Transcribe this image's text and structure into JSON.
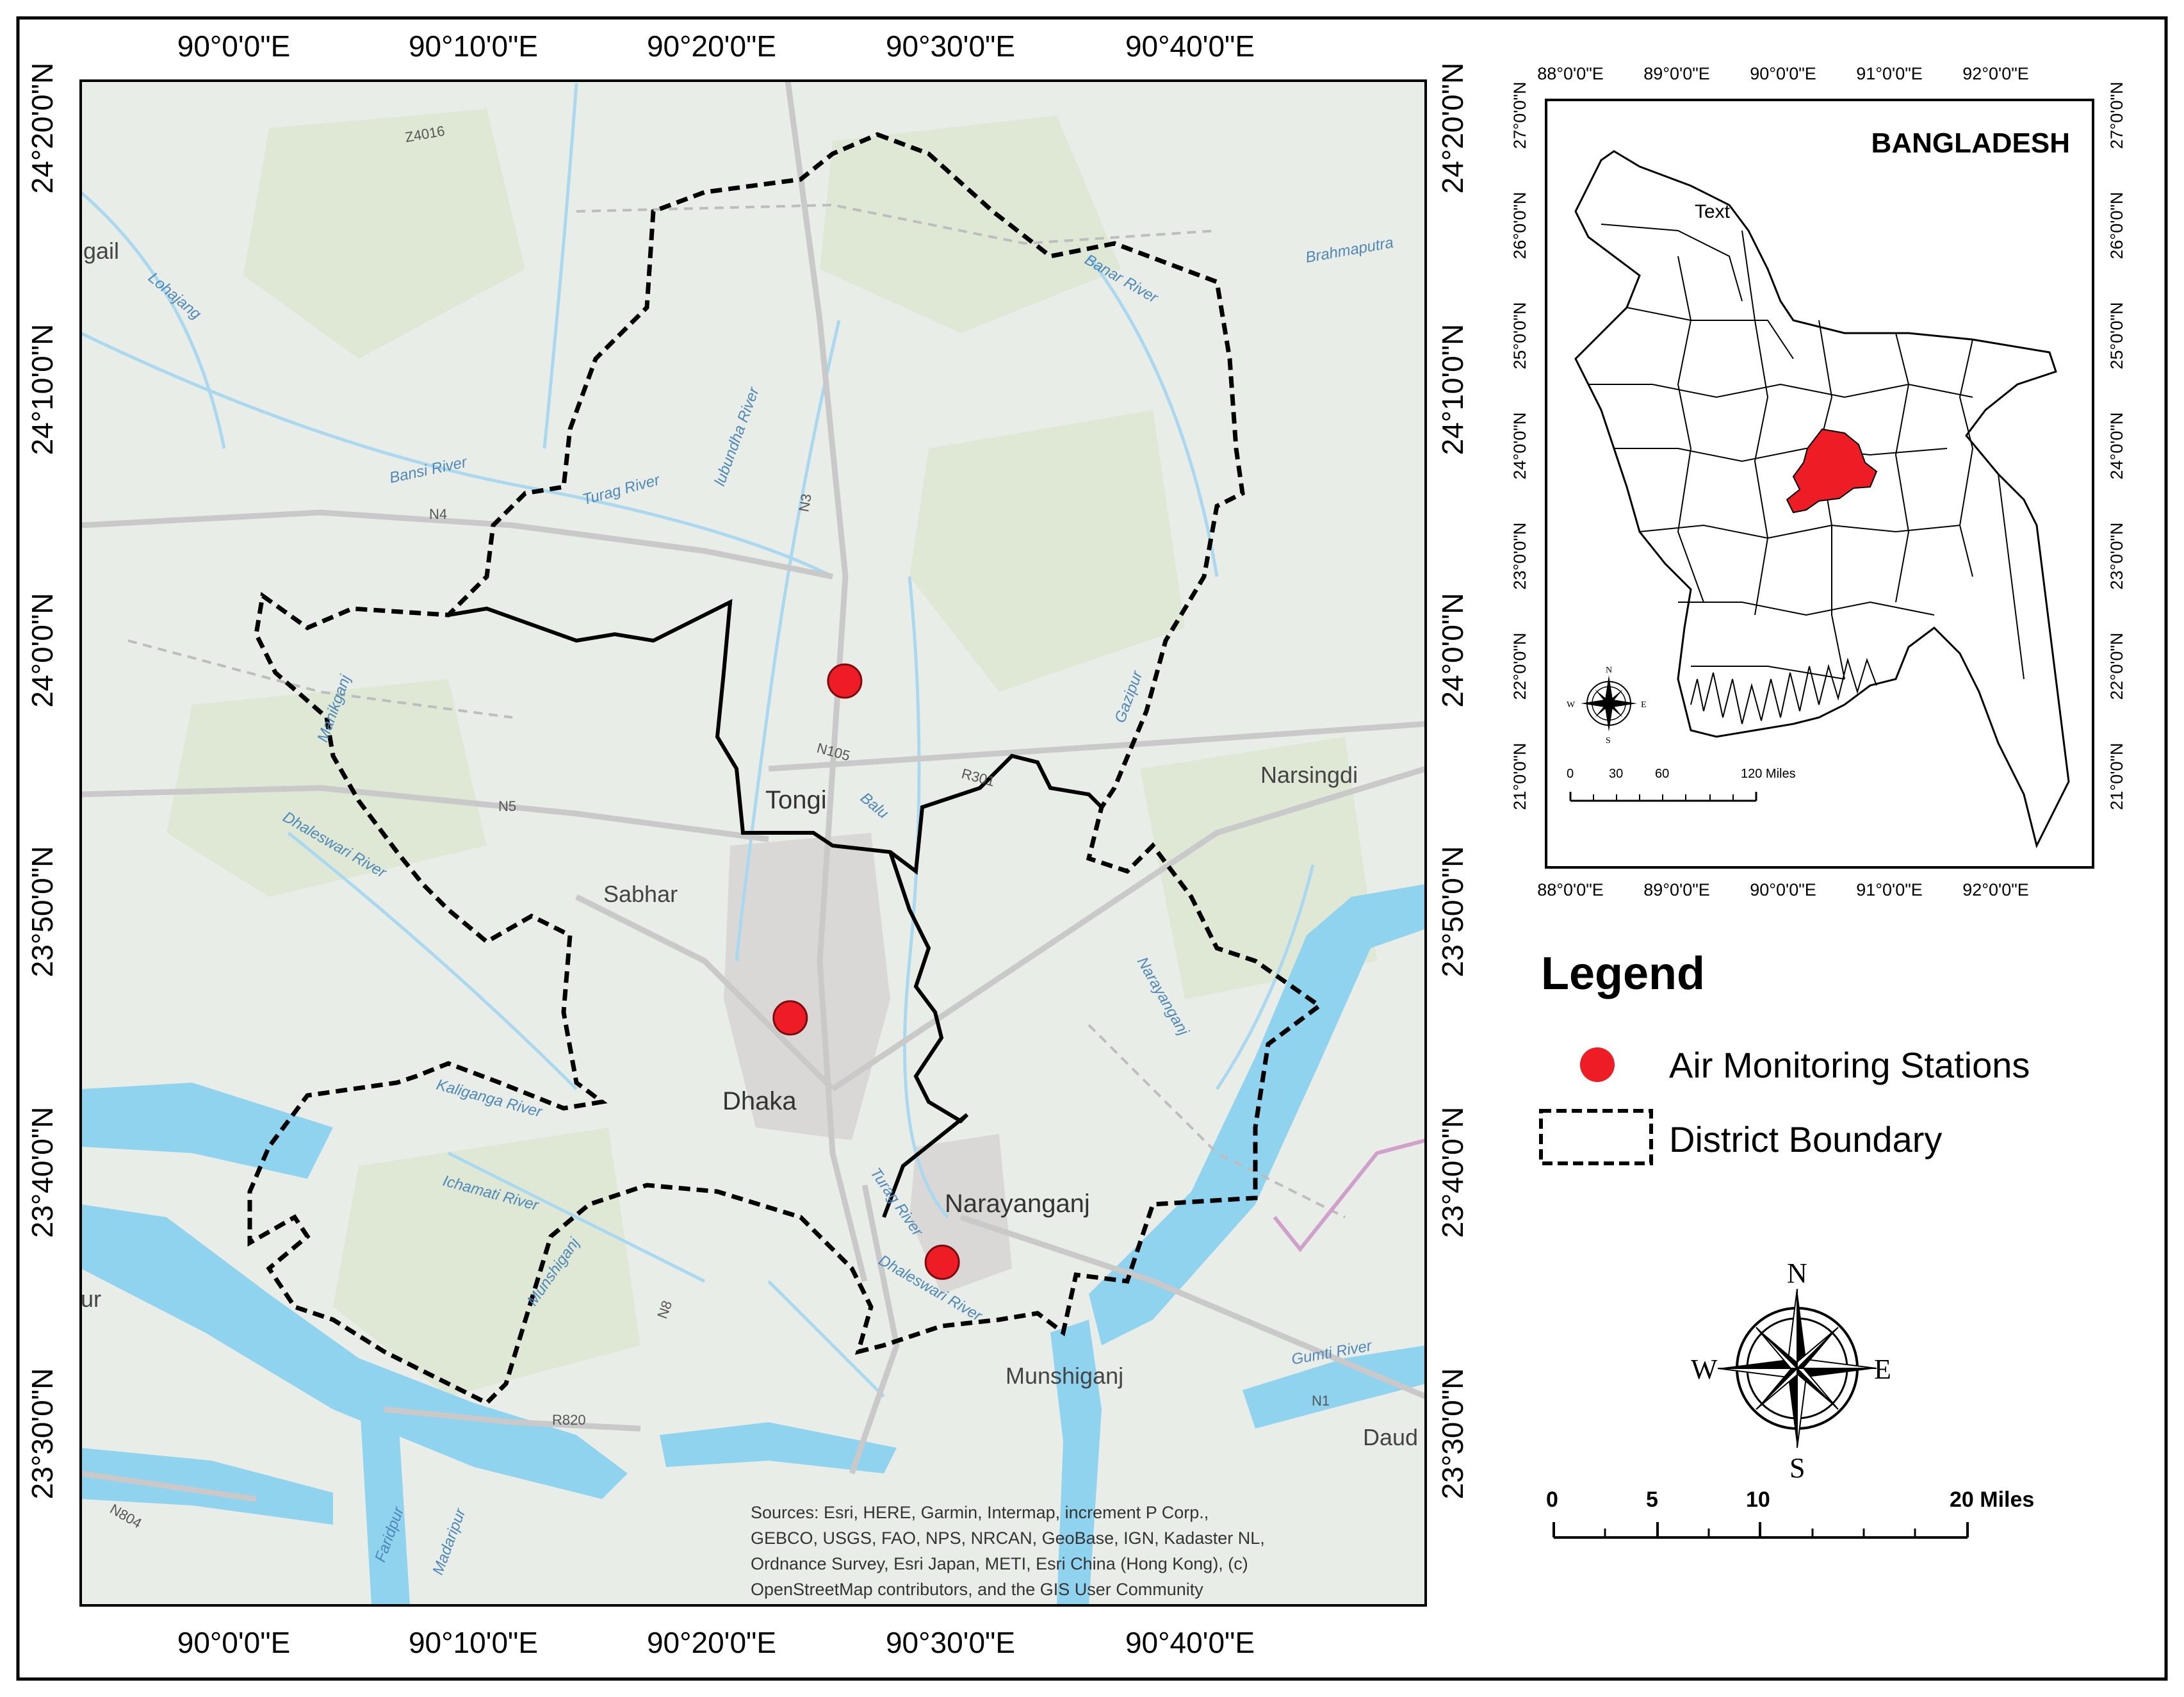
{
  "main_map": {
    "lon_labels": [
      "90°0'0\"E",
      "90°10'0\"E",
      "90°20'0\"E",
      "90°30'0\"E",
      "90°40'0\"E"
    ],
    "lat_labels": [
      "24°20'0\"N",
      "24°10'0\"N",
      "24°0'0\"N",
      "23°50'0\"N",
      "23°40'0\"N",
      "23°30'0\"N"
    ],
    "places": {
      "tongi": "Tongi",
      "dhaka": "Dhaka",
      "narayanganj": "Narayanganj",
      "sabhar": "Sabhar",
      "narsingdi": "Narsingdi",
      "munshiganj": "Munshiganj",
      "munshiganj_small": "Munshiganj",
      "gazipur": "Gazipur",
      "manikganj": "Manikganj",
      "faridpur": "Faridpur",
      "madaripur": "Madaripur",
      "naray_small": "Narayanganj",
      "daud": "Daud",
      "gail": "gail",
      "ur": "ur"
    },
    "roads": [
      "N3",
      "N4",
      "N5",
      "N8",
      "N1",
      "N105",
      "R301",
      "R820",
      "N804",
      "Z4016"
    ],
    "rivers": {
      "bansi": "Bansi River",
      "turag": "Turag River",
      "lubundha": "lubundha River",
      "dhaleswari": "Dhaleswari River",
      "ichamati": "Ichamati River",
      "balu": "Balu",
      "tilabaz": "Turag River",
      "dhaleswari2": "Dhaleswari River",
      "gumti": "Gumti River",
      "brahmaputra": "Brahmaputra",
      "lohajang": "Lohajang",
      "banar": "Banar River",
      "kaliganga": "Kaliganga River"
    },
    "stations": [
      {
        "name": "Gazipur station",
        "lon": 90.426,
        "lat": 23.993
      },
      {
        "name": "Dhaka station",
        "lon": 90.388,
        "lat": 23.778
      },
      {
        "name": "Narayanganj station",
        "lon": 90.494,
        "lat": 23.622
      }
    ],
    "attribution": [
      "Sources: Esri, HERE, Garmin, Intermap, increment P Corp.,",
      "GEBCO, USGS, FAO, NPS, NRCAN, GeoBase, IGN, Kadaster NL,",
      "Ordnance Survey, Esri Japan, METI, Esri China (Hong Kong), (c)",
      "OpenStreetMap contributors, and the GIS User Community"
    ]
  },
  "inset": {
    "title": "BANGLADESH",
    "lon_labels": [
      "88°0'0\"E",
      "89°0'0\"E",
      "90°0'0\"E",
      "91°0'0\"E",
      "92°0'0\"E"
    ],
    "lat_labels": [
      "27°0'0\"N",
      "26°0'0\"N",
      "25°0'0\"N",
      "24°0'0\"N",
      "23°0'0\"N",
      "22°0'0\"N",
      "21°0'0\"N"
    ],
    "stray_text": "Text",
    "scale_labels": [
      "0",
      "30",
      "60",
      "120 Miles"
    ],
    "compass": {
      "n": "N",
      "s": "S",
      "e": "E",
      "w": "W"
    },
    "highlight_color": "#ee1c25"
  },
  "legend": {
    "title": "Legend",
    "items": [
      {
        "symbol": "red-dot",
        "label": "Air Monitoring Stations",
        "color": "#ee1c25"
      },
      {
        "symbol": "dashed-box",
        "label": "District Boundary"
      }
    ]
  },
  "compass": {
    "n": "N",
    "s": "S",
    "e": "E",
    "w": "W"
  },
  "scale_bar": {
    "labels": [
      "0",
      "5",
      "10",
      "20 Miles"
    ]
  },
  "colors": {
    "land": "#e9ede7",
    "green": "#dfe8d5",
    "water": "#8fd3ee",
    "river": "#a9d8ef",
    "road": "#cdcdcd",
    "urban": "#d9d8d6",
    "station": "#ee1c25",
    "boundary": "#000000"
  }
}
